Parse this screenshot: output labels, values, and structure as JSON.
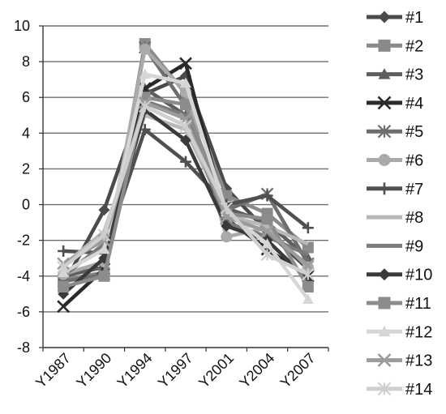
{
  "chart_data": {
    "type": "line",
    "title": "",
    "xlabel": "",
    "ylabel": "",
    "categories": [
      "Y1987",
      "Y1990",
      "Y1994",
      "Y1997",
      "Y2001",
      "Y2004",
      "Y2007"
    ],
    "ylim": [
      -8,
      10
    ],
    "yticks": [
      -8,
      -6,
      -4,
      -2,
      0,
      2,
      4,
      6,
      8,
      10
    ],
    "grid": "horizontal",
    "legend_position": "right",
    "series": [
      {
        "name": "#1",
        "marker": "diamond",
        "color": "#4a4a4a",
        "values": [
          -4.5,
          -0.3,
          6.2,
          7.2,
          0.9,
          -1.5,
          -3.6
        ]
      },
      {
        "name": "#2",
        "marker": "square",
        "color": "#8a8a8a",
        "values": [
          -4.2,
          -3.8,
          9.0,
          6.2,
          0.5,
          -0.5,
          -2.4
        ]
      },
      {
        "name": "#3",
        "marker": "triangle",
        "color": "#5e5e5e",
        "values": [
          -4.0,
          -3.5,
          6.5,
          5.0,
          -0.2,
          -1.0,
          -3.0
        ]
      },
      {
        "name": "#4",
        "marker": "x",
        "color": "#2a2a2a",
        "values": [
          -5.7,
          -3.6,
          6.5,
          7.9,
          -0.8,
          -2.5,
          -4.0
        ]
      },
      {
        "name": "#5",
        "marker": "asterisk",
        "color": "#6e6e6e",
        "values": [
          -4.3,
          -3.9,
          8.8,
          5.5,
          -0.3,
          0.6,
          -3.3
        ]
      },
      {
        "name": "#6",
        "marker": "circle",
        "color": "#aaaaaa",
        "values": [
          -3.9,
          -3.2,
          8.7,
          6.3,
          -1.8,
          -1.3,
          -3.5
        ]
      },
      {
        "name": "#7",
        "marker": "plus",
        "color": "#505050",
        "values": [
          -2.6,
          -2.7,
          4.2,
          2.4,
          0.0,
          0.5,
          -1.3
        ]
      },
      {
        "name": "#8",
        "marker": "none",
        "color": "#b8b8b8",
        "values": [
          -3.4,
          -1.5,
          5.0,
          4.2,
          -0.6,
          -1.2,
          -2.2
        ]
      },
      {
        "name": "#9",
        "marker": "none",
        "color": "#7a7a7a",
        "values": [
          -4.0,
          -2.2,
          5.8,
          5.0,
          -1.0,
          -1.8,
          -2.8
        ]
      },
      {
        "name": "#10",
        "marker": "diamond",
        "color": "#3a3a3a",
        "values": [
          -5.0,
          -3.0,
          5.3,
          3.6,
          -1.2,
          -2.0,
          -4.2
        ]
      },
      {
        "name": "#11",
        "marker": "square",
        "color": "#8c8c8c",
        "values": [
          -4.6,
          -4.0,
          6.0,
          5.6,
          -0.5,
          -0.8,
          -4.6
        ]
      },
      {
        "name": "#12",
        "marker": "triangle",
        "color": "#d6d6d6",
        "values": [
          -3.8,
          -2.5,
          7.3,
          6.8,
          -0.4,
          -2.2,
          -5.3
        ]
      },
      {
        "name": "#13",
        "marker": "x",
        "color": "#9c9c9c",
        "values": [
          -3.3,
          -2.0,
          5.7,
          4.8,
          -0.7,
          -1.5,
          -3.4
        ]
      },
      {
        "name": "#14",
        "marker": "asterisk",
        "color": "#cfcfcf",
        "values": [
          -3.5,
          -1.7,
          5.5,
          4.4,
          -0.2,
          -2.8,
          -3.9
        ]
      }
    ]
  }
}
